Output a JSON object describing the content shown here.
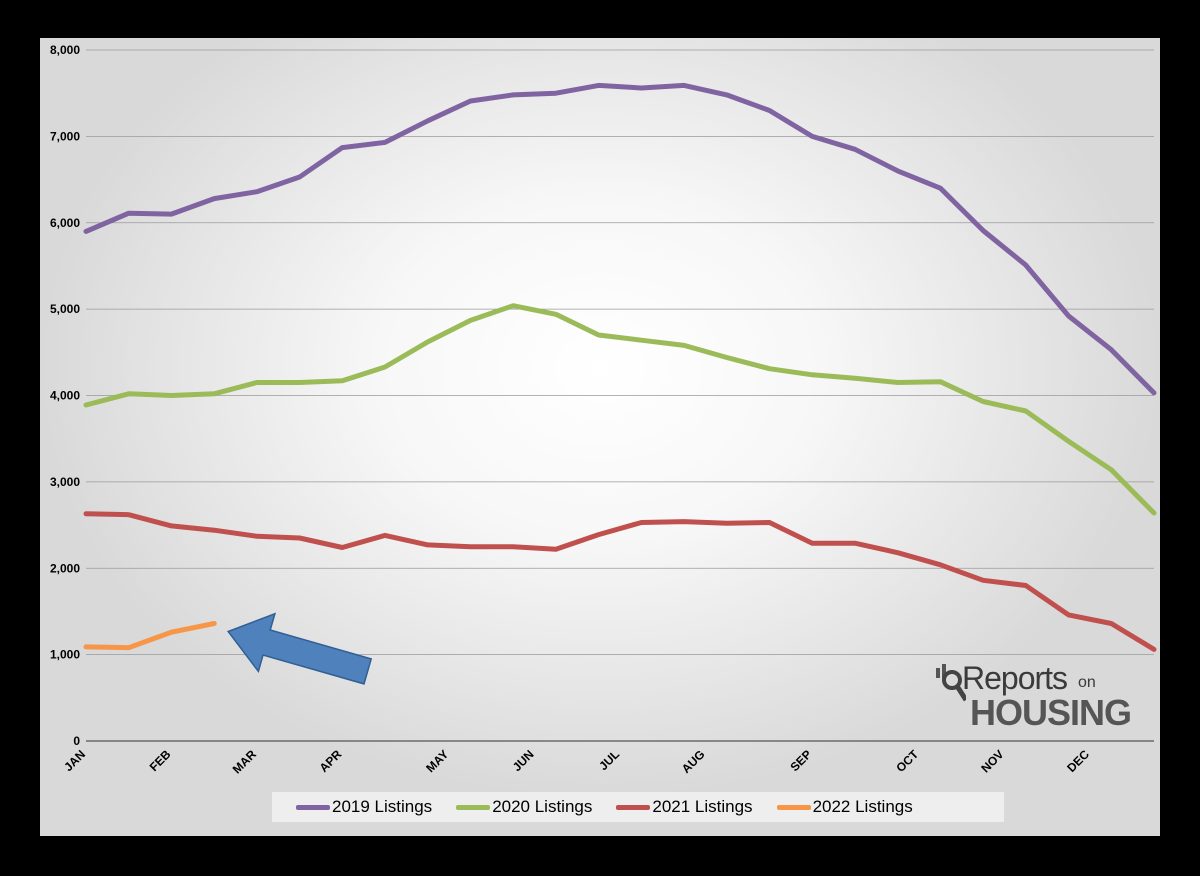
{
  "chart_data": {
    "type": "line",
    "title": "",
    "xlabel": "",
    "ylabel": "",
    "ylim": [
      0,
      8000
    ],
    "y_ticks": [
      "0",
      "1,000",
      "2,000",
      "3,000",
      "4,000",
      "5,000",
      "6,000",
      "7,000",
      "8,000"
    ],
    "x_tick_labels": [
      {
        "label": "JAN",
        "week": 1
      },
      {
        "label": "FEB",
        "week": 5
      },
      {
        "label": "MAR",
        "week": 9
      },
      {
        "label": "APR",
        "week": 13
      },
      {
        "label": "MAY",
        "week": 18
      },
      {
        "label": "JUN",
        "week": 22
      },
      {
        "label": "JUL",
        "week": 26
      },
      {
        "label": "AUG",
        "week": 30
      },
      {
        "label": "SEP",
        "week": 35
      },
      {
        "label": "OCT",
        "week": 40
      },
      {
        "label": "NOV",
        "week": 44
      },
      {
        "label": "DEC",
        "week": 48
      }
    ],
    "x_points": 26,
    "x_step_weeks": 2,
    "grid": true,
    "legend_position": "bottom",
    "series": [
      {
        "name": "2019 Listings",
        "color": "#8064a2",
        "values": [
          5900,
          6110,
          6100,
          6280,
          6360,
          6530,
          6870,
          6930,
          7180,
          7410,
          7480,
          7500,
          7590,
          7560,
          7590,
          7480,
          7300,
          7000,
          6850,
          6600,
          6400,
          5910,
          5510,
          4920,
          4530,
          4030
        ]
      },
      {
        "name": "2020 Listings",
        "color": "#9bbb59",
        "values": [
          3890,
          4020,
          4000,
          4020,
          4150,
          4150,
          4170,
          4330,
          4620,
          4870,
          5040,
          4940,
          4700,
          4640,
          4580,
          4440,
          4310,
          4240,
          4200,
          4150,
          4160,
          3930,
          3820,
          3470,
          3140,
          2640
        ]
      },
      {
        "name": "2021 Listings",
        "color": "#c0504d",
        "values": [
          2630,
          2620,
          2490,
          2440,
          2370,
          2350,
          2240,
          2380,
          2270,
          2250,
          2250,
          2220,
          2390,
          2530,
          2540,
          2520,
          2530,
          2290,
          2290,
          2180,
          2040,
          1860,
          1800,
          1460,
          1360,
          1060
        ]
      },
      {
        "name": "2022 Listings",
        "color": "#f79646",
        "values": [
          1090,
          1080,
          1260,
          1360
        ]
      }
    ]
  },
  "legend": {
    "items": [
      "2019 Listings",
      "2020 Listings",
      "2021 Listings",
      "2022 Listings"
    ]
  },
  "annotation": {
    "type": "arrow",
    "color": "#4f81bd",
    "points_to_series": "2022 Listings"
  },
  "logo": {
    "line1": "Reports",
    "line1_small": "on",
    "line2": "HOUSING"
  }
}
